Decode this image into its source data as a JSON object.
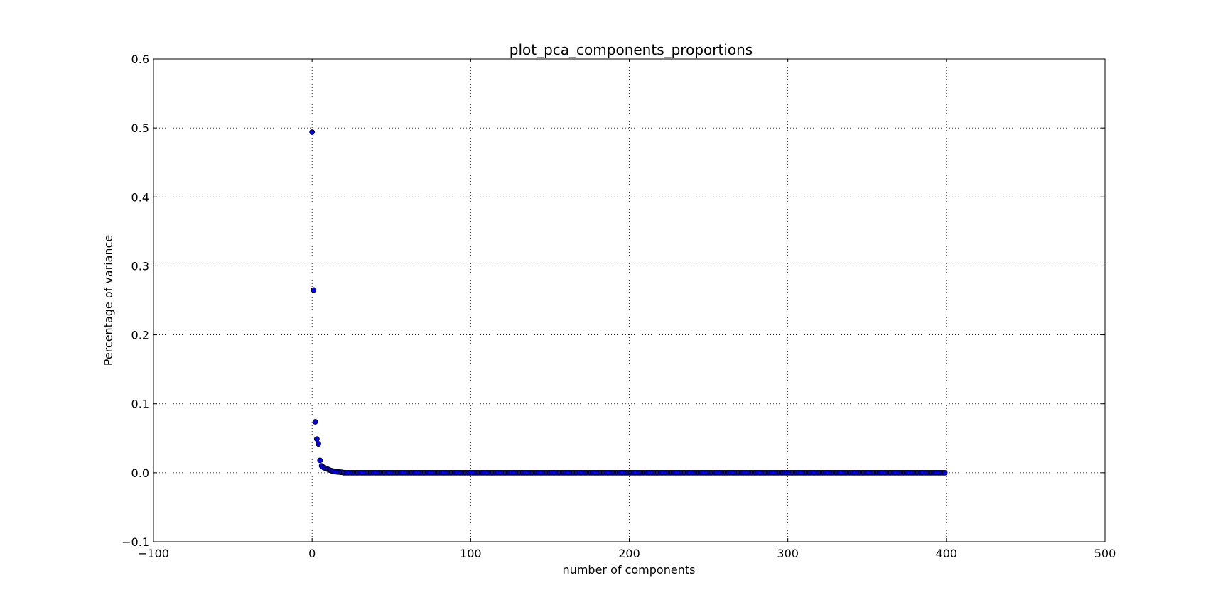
{
  "chart_data": {
    "type": "scatter",
    "title": "plot_pca_components_proportions",
    "xlabel": "number of components",
    "ylabel": "Percentage of variance",
    "xlim": [
      -100,
      500
    ],
    "ylim": [
      -0.1,
      0.6
    ],
    "x_ticks": [
      -100,
      0,
      100,
      200,
      300,
      400,
      500
    ],
    "x_tick_labels": [
      "−100",
      "0",
      "100",
      "200",
      "300",
      "400",
      "500"
    ],
    "y_ticks": [
      -0.1,
      0.0,
      0.1,
      0.2,
      0.3,
      0.4,
      0.5,
      0.6
    ],
    "y_tick_labels": [
      "−0.1",
      "0.0",
      "0.1",
      "0.2",
      "0.3",
      "0.4",
      "0.5",
      "0.6"
    ],
    "grid": true,
    "legend": "none",
    "marker_color": "#0000ff",
    "marker_edge_color": "#000000",
    "head_values": [
      0.494,
      0.265,
      0.074,
      0.049,
      0.042,
      0.018,
      0.01,
      0.008,
      0.007,
      0.006,
      0.005,
      0.004,
      0.003,
      0.0025,
      0.002,
      0.0015,
      0.0012,
      0.001,
      0.0008,
      0.0006
    ],
    "tail_value": 0.0,
    "n_points": 400,
    "x_start": 0
  }
}
